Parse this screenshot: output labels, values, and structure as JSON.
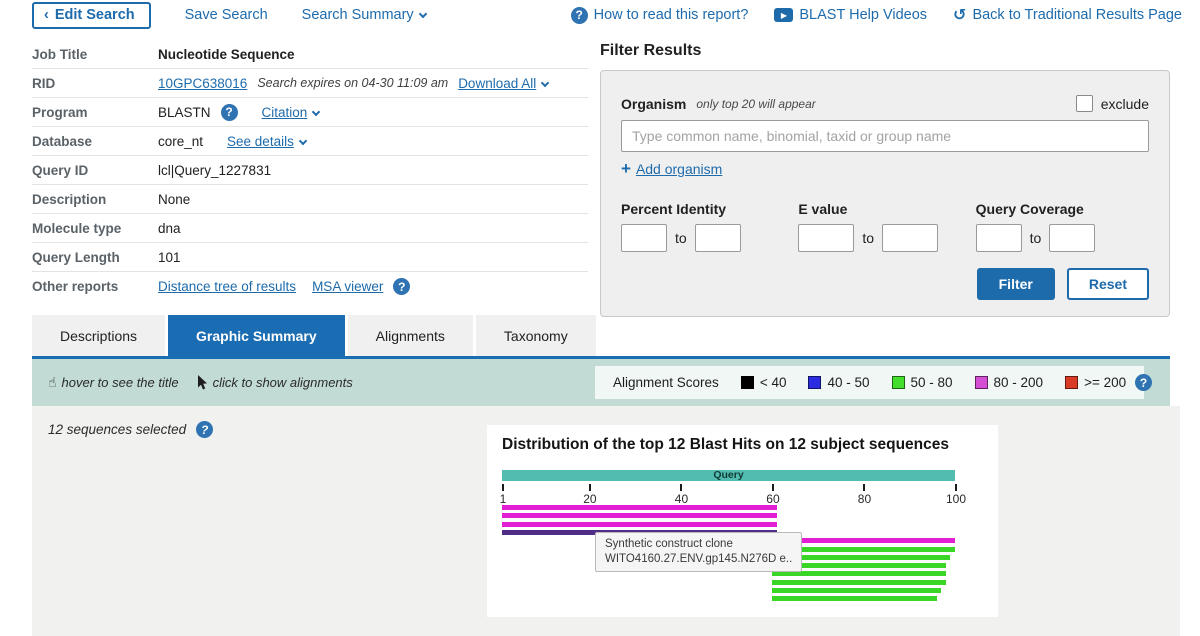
{
  "topbar": {
    "edit_search": "Edit Search",
    "save_search": "Save Search",
    "search_summary": "Search Summary",
    "how_to_read": "How to read this report?",
    "help_videos": "BLAST Help Videos",
    "back_traditional": "Back to Traditional Results Page"
  },
  "info": {
    "job_title_label": "Job Title",
    "job_title": "Nucleotide Sequence",
    "rid_label": "RID",
    "rid": "10GPC638016",
    "rid_note": "Search expires on 04-30 11:09 am",
    "download_all": "Download All",
    "program_label": "Program",
    "program": "BLASTN",
    "citation": "Citation",
    "database_label": "Database",
    "database": "core_nt",
    "see_details": "See details",
    "query_id_label": "Query ID",
    "query_id": "lcl|Query_1227831",
    "description_label": "Description",
    "description": "None",
    "molecule_type_label": "Molecule type",
    "molecule_type": "dna",
    "query_length_label": "Query Length",
    "query_length": "101",
    "other_reports_label": "Other reports",
    "distance_tree": "Distance tree of results",
    "msa_viewer": "MSA viewer"
  },
  "filter": {
    "title": "Filter Results",
    "organism_label": "Organism",
    "organism_note": "only top 20 will appear",
    "exclude_label": "exclude",
    "organism_placeholder": "Type common name, binomial, taxid or group name",
    "add_organism": "Add organism",
    "percent_identity_label": "Percent Identity",
    "evalue_label": "E value",
    "query_coverage_label": "Query Coverage",
    "to_label": "to",
    "filter_button": "Filter",
    "reset_button": "Reset"
  },
  "tabs": [
    {
      "label": "Descriptions",
      "active": false
    },
    {
      "label": "Graphic Summary",
      "active": true
    },
    {
      "label": "Alignments",
      "active": false
    },
    {
      "label": "Taxonomy",
      "active": false
    }
  ],
  "hints": {
    "hover": "hover to see the title",
    "click": "click to show alignments"
  },
  "legend": {
    "title": "Alignment Scores",
    "items": [
      {
        "label": "< 40",
        "color": "#000000"
      },
      {
        "label": "40 - 50",
        "color": "#2b2be0"
      },
      {
        "label": "50 - 80",
        "color": "#43df2c"
      },
      {
        "label": "80 - 200",
        "color": "#d44fd4"
      },
      {
        "label": ">= 200",
        "color": "#da3b27"
      }
    ]
  },
  "summary": {
    "selected_text": "12 sequences selected"
  },
  "chart_data": {
    "type": "blast-hit-distribution",
    "title": "Distribution of the top 12 Blast Hits on 12 subject sequences",
    "query_label": "Query",
    "axis_min": 1,
    "axis_max": 100,
    "axis_ticks": [
      1,
      20,
      40,
      60,
      80,
      100
    ],
    "colors": {
      "magenta": "#e31fd6",
      "green": "#3ad625",
      "hover": "#4f2d87",
      "query_bar": "#52bcb1"
    },
    "bars": [
      {
        "row": 0,
        "start": 1,
        "end": 61,
        "score": "80-200",
        "color": "magenta"
      },
      {
        "row": 1,
        "start": 1,
        "end": 61,
        "score": "80-200",
        "color": "magenta"
      },
      {
        "row": 2,
        "start": 1,
        "end": 61,
        "score": "80-200",
        "color": "magenta"
      },
      {
        "row": 3,
        "start": 1,
        "end": 61,
        "score": "80-200",
        "color": "hover",
        "hovered": true
      },
      {
        "row": 4,
        "start": 61,
        "end": 100,
        "score": "80-200",
        "color": "magenta"
      },
      {
        "row": 5,
        "start": 61,
        "end": 100,
        "score": "50-80",
        "color": "green"
      },
      {
        "row": 6,
        "start": 62,
        "end": 99,
        "score": "50-80",
        "color": "green"
      },
      {
        "row": 7,
        "start": 60,
        "end": 98,
        "score": "50-80",
        "color": "green"
      },
      {
        "row": 8,
        "start": 60,
        "end": 98,
        "score": "50-80",
        "color": "green"
      },
      {
        "row": 9,
        "start": 60,
        "end": 98,
        "score": "50-80",
        "color": "green"
      },
      {
        "row": 10,
        "start": 60,
        "end": 97,
        "score": "50-80",
        "color": "green"
      },
      {
        "row": 11,
        "start": 60,
        "end": 96,
        "score": "50-80",
        "color": "green"
      }
    ],
    "tooltip": {
      "line1": "Synthetic construct clone",
      "line2": "WITO4160.27.ENV.gp145.N276D e.."
    }
  }
}
